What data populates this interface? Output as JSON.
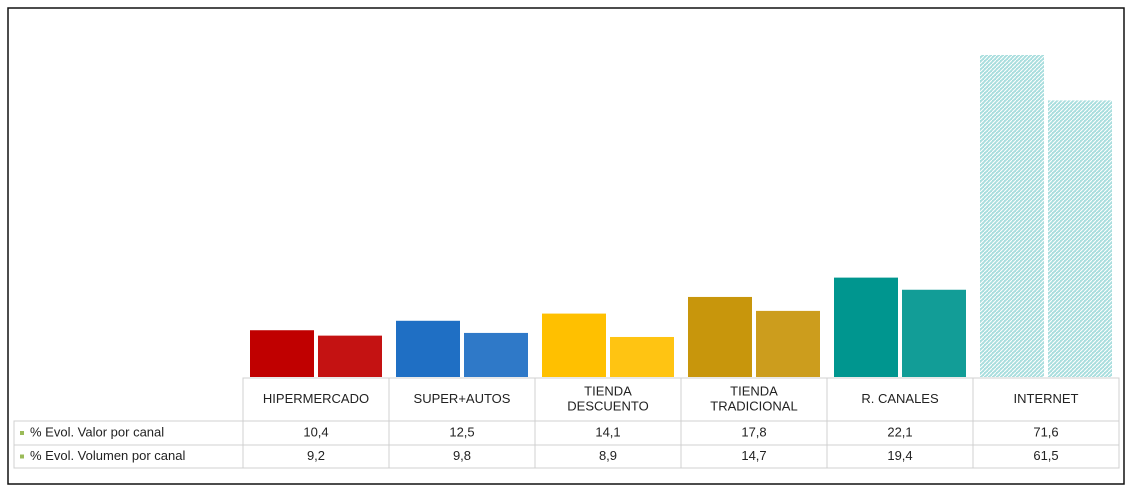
{
  "chart_data": {
    "type": "bar",
    "categories": [
      "HIPERMERCADO",
      "SUPER+AUTOS",
      "TIENDA DESCUENTO",
      "TIENDA TRADICIONAL",
      "R. CANALES",
      "INTERNET"
    ],
    "category_colors": [
      "#c00000",
      "#1f6fc4",
      "#ffc000",
      "#c8960c",
      "#00968f",
      "#a9dede"
    ],
    "category_hatched": [
      false,
      false,
      false,
      false,
      false,
      true
    ],
    "series": [
      {
        "name": "% Evol. Valor por canal",
        "color": "#9bbb59",
        "values": [
          10.4,
          12.5,
          14.1,
          17.8,
          22.1,
          71.6
        ],
        "value_labels": [
          "10,4",
          "12,5",
          "14,1",
          "17,8",
          "22,1",
          "71,6"
        ]
      },
      {
        "name": "% Evol. Volumen por canal",
        "color": "#9bbb59",
        "values": [
          9.2,
          9.8,
          8.9,
          14.7,
          19.4,
          61.5
        ],
        "value_labels": [
          "9,2",
          "9,8",
          "8,9",
          "14,7",
          "19,4",
          "61,5"
        ]
      }
    ]
  }
}
